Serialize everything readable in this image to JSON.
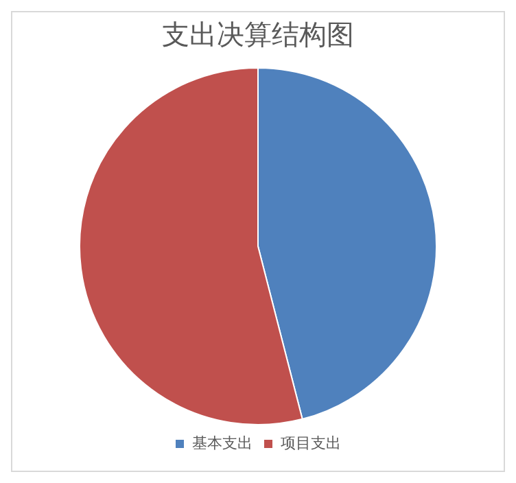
{
  "chart_data": {
    "type": "pie",
    "title": "支出决算结构图",
    "categories": [
      "基本支出",
      "项目支出"
    ],
    "values": [
      46,
      54
    ],
    "colors": [
      "#4f81bd",
      "#c0504d"
    ],
    "legend": "bottom"
  }
}
